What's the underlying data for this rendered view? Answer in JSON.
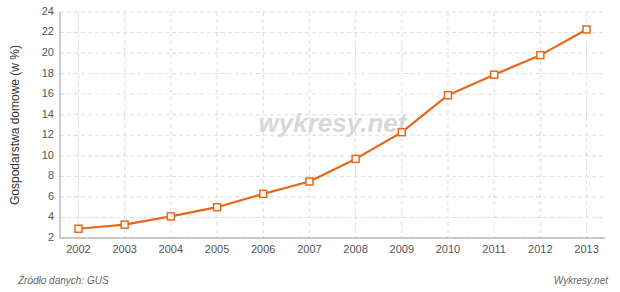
{
  "chart_data": {
    "type": "line",
    "x": [
      2002,
      2003,
      2004,
      2005,
      2006,
      2007,
      2008,
      2009,
      2010,
      2011,
      2012,
      2013
    ],
    "values": [
      2.9,
      3.3,
      4.1,
      5.0,
      6.3,
      7.5,
      9.7,
      12.3,
      15.9,
      17.9,
      19.8,
      22.3
    ],
    "color": "#E8671A",
    "marker": "square",
    "y_label": "Gospodarstwa domowe (w %)",
    "xlim": [
      2001.6,
      2013.4
    ],
    "xticks": [
      2002,
      2003,
      2004,
      2005,
      2006,
      2007,
      2008,
      2009,
      2010,
      2011,
      2012,
      2013
    ],
    "ylim": [
      2,
      24
    ],
    "yticks": [
      2,
      4,
      6,
      8,
      10,
      12,
      14,
      16,
      18,
      20,
      22,
      24
    ],
    "grid": true,
    "annotations": [
      "wykresy.net",
      "Źródło danych:  GUS",
      "Wykresy.net"
    ]
  }
}
